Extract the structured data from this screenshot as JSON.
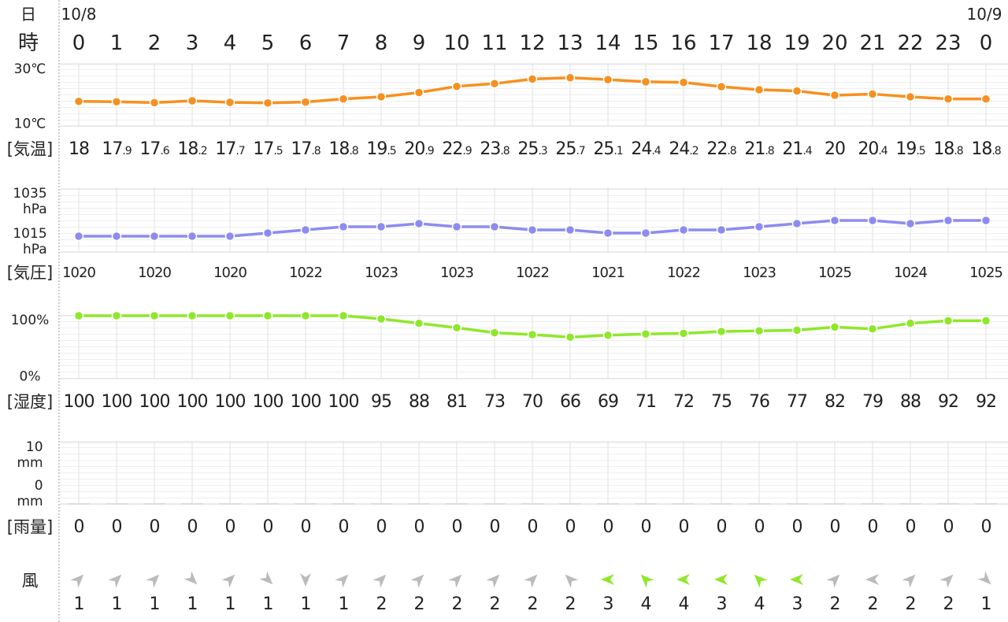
{
  "header": {
    "day_label": "日",
    "hour_label": "時",
    "date_start": "10/8",
    "date_end": "10/9",
    "hours": [
      0,
      1,
      2,
      3,
      4,
      5,
      6,
      7,
      8,
      9,
      10,
      11,
      12,
      13,
      14,
      15,
      16,
      17,
      18,
      19,
      20,
      21,
      22,
      23,
      0
    ]
  },
  "chart_data": [
    {
      "type": "line",
      "label": "[気温]",
      "color": "#f7901e",
      "grid": true,
      "ylim": [
        10,
        30
      ],
      "yticks": [
        {
          "value": 10,
          "label": "10℃"
        },
        {
          "value": 30,
          "label": "30℃"
        }
      ],
      "values": [
        18,
        17.9,
        17.6,
        18.2,
        17.7,
        17.5,
        17.8,
        18.8,
        19.5,
        20.9,
        22.9,
        23.8,
        25.3,
        25.7,
        25.1,
        24.4,
        24.2,
        22.8,
        21.8,
        21.4,
        20,
        20.4,
        19.5,
        18.8,
        18.8
      ]
    },
    {
      "type": "line",
      "label": "[気圧]",
      "color": "#8c8cf0",
      "grid": true,
      "ylim": [
        1015,
        1035
      ],
      "yticks": [
        {
          "value": 1015,
          "label": "1015\nhPa"
        },
        {
          "value": 1035,
          "label": "1035\nhPa"
        }
      ],
      "values": [
        1020,
        1020,
        1020,
        1020,
        1020,
        1021,
        1022,
        1023,
        1023,
        1024,
        1023,
        1023,
        1022,
        1022,
        1021,
        1021,
        1022,
        1022,
        1023,
        1024,
        1025,
        1025,
        1024,
        1025,
        1025
      ],
      "value_labels": [
        "1020",
        null,
        "1020",
        null,
        "1020",
        null,
        "1022",
        null,
        "1023",
        null,
        "1023",
        null,
        "1022",
        null,
        "1021",
        null,
        "1022",
        null,
        "1023",
        null,
        "1025",
        null,
        "1024",
        null,
        "1025"
      ]
    },
    {
      "type": "line",
      "label": "[湿度]",
      "color": "#8ee82a",
      "grid": true,
      "ylim": [
        0,
        100
      ],
      "yticks": [
        {
          "value": 0,
          "label": "0%"
        },
        {
          "value": 100,
          "label": "100%"
        }
      ],
      "values": [
        100,
        100,
        100,
        100,
        100,
        100,
        100,
        100,
        95,
        88,
        81,
        73,
        70,
        66,
        69,
        71,
        72,
        75,
        76,
        77,
        82,
        79,
        88,
        92,
        92
      ]
    },
    {
      "type": "bar",
      "label": "[雨量]",
      "color": "#dddddd",
      "grid": true,
      "ylim": [
        0,
        10
      ],
      "yticks": [
        {
          "value": 0,
          "label": "0\nmm"
        },
        {
          "value": 10,
          "label": "10\nmm"
        }
      ],
      "values": [
        0,
        0,
        0,
        0,
        0,
        0,
        0,
        0,
        0,
        0,
        0,
        0,
        0,
        0,
        0,
        0,
        0,
        0,
        0,
        0,
        0,
        0,
        0,
        0,
        0
      ]
    }
  ],
  "wind": {
    "label": "風",
    "directions": [
      45,
      45,
      45,
      135,
      45,
      135,
      180,
      45,
      45,
      45,
      45,
      45,
      45,
      315,
      270,
      315,
      270,
      270,
      315,
      270,
      45,
      270,
      45,
      45,
      135
    ],
    "speeds": [
      1,
      1,
      1,
      1,
      1,
      1,
      1,
      1,
      2,
      2,
      2,
      2,
      2,
      2,
      3,
      4,
      4,
      3,
      4,
      3,
      2,
      2,
      2,
      2,
      1
    ],
    "colors": [
      "#bbbbbb",
      "#bbbbbb",
      "#bbbbbb",
      "#bbbbbb",
      "#bbbbbb",
      "#bbbbbb",
      "#bbbbbb",
      "#bbbbbb",
      "#bbbbbb",
      "#bbbbbb",
      "#bbbbbb",
      "#bbbbbb",
      "#bbbbbb",
      "#bbbbbb",
      "#8ee82a",
      "#8ee82a",
      "#8ee82a",
      "#8ee82a",
      "#8ee82a",
      "#8ee82a",
      "#bbbbbb",
      "#bbbbbb",
      "#bbbbbb",
      "#bbbbbb",
      "#bbbbbb"
    ]
  }
}
